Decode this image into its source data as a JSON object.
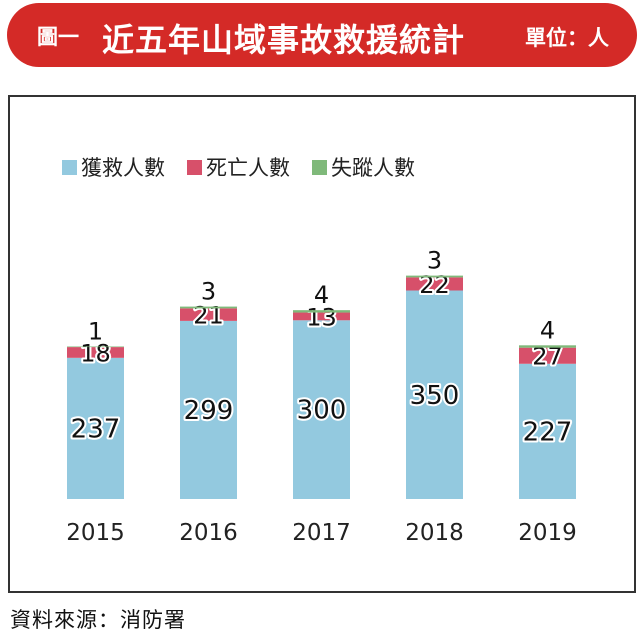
{
  "header": {
    "figure_label": "圖一",
    "title": "近五年山域事故救援統計",
    "unit": "單位：人"
  },
  "source": "資料來源：消防署",
  "colors": {
    "header_bg": "#d42a27",
    "rescued": "#93c9df",
    "dead": "#d7506a",
    "missing": "#7fb97a"
  },
  "chart_data": {
    "type": "bar",
    "stacked": true,
    "title": "近五年山域事故救援統計",
    "unit": "單位：人",
    "xlabel": "",
    "ylabel": "",
    "categories": [
      "2015",
      "2016",
      "2017",
      "2018",
      "2019"
    ],
    "series": [
      {
        "name": "獲救人數",
        "values": [
          237,
          299,
          300,
          350,
          227
        ]
      },
      {
        "name": "死亡人數",
        "values": [
          18,
          21,
          13,
          22,
          27
        ]
      },
      {
        "name": "失蹤人數",
        "values": [
          1,
          3,
          4,
          3,
          4
        ]
      }
    ],
    "legend_position": "top-left",
    "grid": false
  }
}
